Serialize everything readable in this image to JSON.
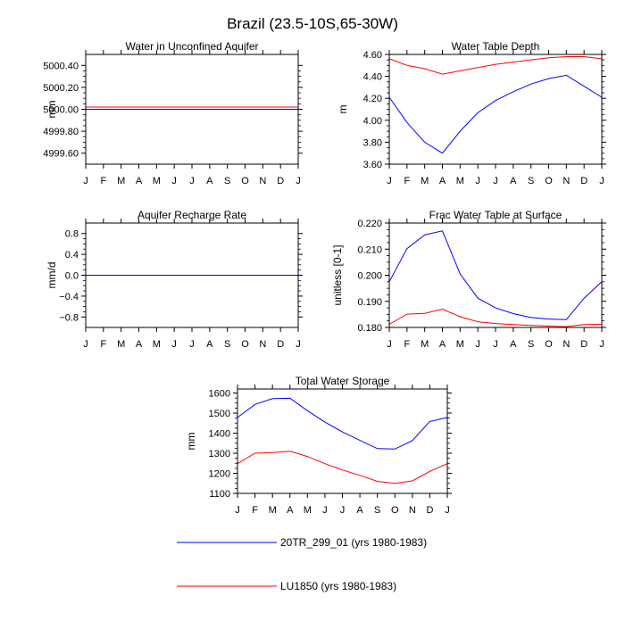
{
  "figure_title": "Brazil (23.5-10S,65-30W)",
  "month_labels": [
    "J",
    "F",
    "M",
    "A",
    "M",
    "J",
    "J",
    "A",
    "S",
    "O",
    "N",
    "D",
    "J"
  ],
  "legend": [
    {
      "label": "20TR_299_01 (yrs 1980-1983)",
      "color": "#0000ff"
    },
    {
      "label": "LU1850 (yrs 1980-1983)",
      "color": "#ff0000"
    }
  ],
  "chart_data": [
    {
      "type": "line",
      "title": "Water in Unconfined Aquifer",
      "ylabel": "mm",
      "ylim": [
        4999.5,
        5000.5
      ],
      "yticks": [
        4999.6,
        4999.8,
        5000.0,
        5000.2,
        5000.4
      ],
      "ytick_labels": [
        "4999.60",
        "4999.80",
        "5000.00",
        "5000.20",
        "5000.40"
      ],
      "x": [
        "J",
        "F",
        "M",
        "A",
        "M",
        "J",
        "J",
        "A",
        "S",
        "O",
        "N",
        "D",
        "J"
      ],
      "series": [
        {
          "name": "20TR_299_01 (yrs 1980-1983)",
          "color": "#0000ff",
          "values": [
            5000.0,
            5000.0,
            5000.0,
            5000.0,
            5000.0,
            5000.0,
            5000.0,
            5000.0,
            5000.0,
            5000.0,
            5000.0,
            5000.0,
            5000.0
          ]
        },
        {
          "name": "LU1850 (yrs 1980-1983)",
          "color": "#ff0000",
          "values": [
            5000.02,
            5000.02,
            5000.02,
            5000.02,
            5000.02,
            5000.02,
            5000.02,
            5000.02,
            5000.02,
            5000.02,
            5000.02,
            5000.02,
            5000.02
          ]
        }
      ]
    },
    {
      "type": "line",
      "title": "Water Table Depth",
      "ylabel": "m",
      "ylim": [
        3.6,
        4.6
      ],
      "yticks": [
        3.6,
        3.8,
        4.0,
        4.2,
        4.4,
        4.6
      ],
      "ytick_labels": [
        "3.60",
        "3.80",
        "4.00",
        "4.20",
        "4.40",
        "4.60"
      ],
      "x": [
        "J",
        "F",
        "M",
        "A",
        "M",
        "J",
        "J",
        "A",
        "S",
        "O",
        "N",
        "D",
        "J"
      ],
      "series": [
        {
          "name": "20TR_299_01 (yrs 1980-1983)",
          "color": "#0000ff",
          "values": [
            4.21,
            3.98,
            3.8,
            3.7,
            3.9,
            4.07,
            4.18,
            4.26,
            4.33,
            4.38,
            4.41,
            4.31,
            4.21
          ]
        },
        {
          "name": "LU1850 (yrs 1980-1983)",
          "color": "#ff0000",
          "values": [
            4.56,
            4.5,
            4.47,
            4.42,
            4.45,
            4.48,
            4.51,
            4.53,
            4.55,
            4.57,
            4.58,
            4.58,
            4.56
          ]
        }
      ]
    },
    {
      "type": "line",
      "title": "Aquifer Recharge Rate",
      "ylabel": "mm/d",
      "ylim": [
        -1.0,
        1.0
      ],
      "yticks": [
        -0.8,
        -0.4,
        0.0,
        0.4,
        0.8
      ],
      "ytick_labels": [
        "−0.8",
        "−0.4",
        "0.0",
        "0.4",
        "0.8"
      ],
      "x": [
        "J",
        "F",
        "M",
        "A",
        "M",
        "J",
        "J",
        "A",
        "S",
        "O",
        "N",
        "D",
        "J"
      ],
      "series": [
        {
          "name": "LU1850 (yrs 1980-1983)",
          "color": "#ff0000",
          "values": [
            0,
            0,
            0,
            0,
            0,
            0,
            0,
            0,
            0,
            0,
            0,
            0,
            0
          ]
        },
        {
          "name": "20TR_299_01 (yrs 1980-1983)",
          "color": "#0000ff",
          "values": [
            0,
            0,
            0,
            0,
            0,
            0,
            0,
            0,
            0,
            0,
            0,
            0,
            0
          ]
        }
      ]
    },
    {
      "type": "line",
      "title": "Frac Water Table at Surface",
      "ylabel": "unitless [0-1]",
      "ylim": [
        0.18,
        0.22
      ],
      "yticks": [
        0.18,
        0.19,
        0.2,
        0.21,
        0.22
      ],
      "ytick_labels": [
        "0.180",
        "0.190",
        "0.200",
        "0.210",
        "0.220"
      ],
      "x": [
        "J",
        "F",
        "M",
        "A",
        "M",
        "J",
        "J",
        "A",
        "S",
        "O",
        "N",
        "D",
        "J"
      ],
      "series": [
        {
          "name": "20TR_299_01 (yrs 1980-1983)",
          "color": "#0000ff",
          "values": [
            0.1975,
            0.2102,
            0.2155,
            0.217,
            0.2005,
            0.1912,
            0.1875,
            0.1853,
            0.1838,
            0.1832,
            0.183,
            0.1912,
            0.1975
          ]
        },
        {
          "name": "LU1850 (yrs 1980-1983)",
          "color": "#ff0000",
          "values": [
            0.1812,
            0.1851,
            0.1854,
            0.187,
            0.1841,
            0.1822,
            0.1815,
            0.1811,
            0.1808,
            0.1805,
            0.1803,
            0.1811,
            0.1812
          ]
        }
      ]
    },
    {
      "type": "line",
      "title": "Total Water Storage",
      "ylabel": "mm",
      "ylim": [
        1100,
        1620
      ],
      "yticks": [
        1100,
        1200,
        1300,
        1400,
        1500,
        1600
      ],
      "ytick_labels": [
        "1100",
        "1200",
        "1300",
        "1400",
        "1500",
        "1600"
      ],
      "x": [
        "J",
        "F",
        "M",
        "A",
        "M",
        "J",
        "J",
        "A",
        "S",
        "O",
        "N",
        "D",
        "J"
      ],
      "series": [
        {
          "name": "20TR_299_01 (yrs 1980-1983)",
          "color": "#0000ff",
          "values": [
            1478,
            1543,
            1572,
            1574,
            1512,
            1455,
            1406,
            1364,
            1323,
            1321,
            1363,
            1458,
            1478
          ]
        },
        {
          "name": "LU1850 (yrs 1980-1983)",
          "color": "#ff0000",
          "values": [
            1248,
            1300,
            1303,
            1310,
            1284,
            1248,
            1217,
            1190,
            1160,
            1150,
            1162,
            1210,
            1248
          ]
        }
      ]
    }
  ]
}
